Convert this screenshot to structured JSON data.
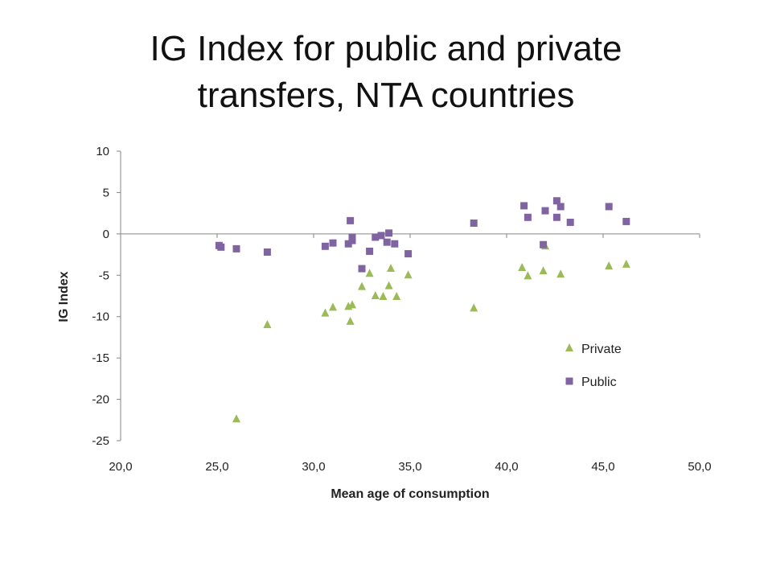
{
  "chart_data": {
    "type": "scatter",
    "title_lines": [
      "IG Index for public and private",
      "transfers, NTA countries"
    ],
    "xlabel": "Mean age of consumption",
    "ylabel": "IG Index",
    "xlim": [
      20,
      50
    ],
    "ylim": [
      -25,
      10
    ],
    "x_ticks": [
      20,
      25,
      30,
      35,
      40,
      45,
      50
    ],
    "x_tick_labels": [
      "20,0",
      "25,0",
      "30,0",
      "35,0",
      "40,0",
      "45,0",
      "50,0"
    ],
    "y_ticks": [
      10,
      5,
      0,
      -5,
      -10,
      -15,
      -20,
      -25
    ],
    "y_tick_labels": [
      "10",
      "5",
      "0",
      "-5",
      "-10",
      "-15",
      "-20",
      "-25"
    ],
    "grid": false,
    "legend_position": "bottom-right",
    "series": [
      {
        "name": "Private",
        "marker": "triangle",
        "color": "#9BBB59",
        "points": [
          [
            26.0,
            -22.4
          ],
          [
            27.6,
            -11.0
          ],
          [
            30.6,
            -9.6
          ],
          [
            31.0,
            -8.9
          ],
          [
            31.8,
            -8.8
          ],
          [
            32.0,
            -8.6
          ],
          [
            31.9,
            -10.6
          ],
          [
            32.5,
            -6.4
          ],
          [
            32.9,
            -4.8
          ],
          [
            33.2,
            -7.5
          ],
          [
            33.6,
            -7.6
          ],
          [
            33.9,
            -6.3
          ],
          [
            34.0,
            -4.2
          ],
          [
            34.3,
            -7.6
          ],
          [
            34.9,
            -5.0
          ],
          [
            38.3,
            -9.0
          ],
          [
            40.8,
            -4.1
          ],
          [
            41.1,
            -5.1
          ],
          [
            41.9,
            -4.5
          ],
          [
            42.0,
            -1.5
          ],
          [
            42.8,
            -4.9
          ],
          [
            45.3,
            -3.9
          ],
          [
            46.2,
            -3.7
          ]
        ]
      },
      {
        "name": "Public",
        "marker": "square",
        "color": "#8064A2",
        "points": [
          [
            25.1,
            -1.4
          ],
          [
            25.2,
            -1.6
          ],
          [
            26.0,
            -1.8
          ],
          [
            27.6,
            -2.2
          ],
          [
            30.6,
            -1.5
          ],
          [
            31.0,
            -1.1
          ],
          [
            31.8,
            -1.2
          ],
          [
            31.9,
            1.6
          ],
          [
            32.0,
            -0.4
          ],
          [
            32.0,
            -0.8
          ],
          [
            32.5,
            -4.2
          ],
          [
            32.9,
            -2.1
          ],
          [
            33.2,
            -0.4
          ],
          [
            33.5,
            -0.2
          ],
          [
            33.8,
            -1.0
          ],
          [
            33.9,
            0.1
          ],
          [
            34.2,
            -1.2
          ],
          [
            34.9,
            -2.4
          ],
          [
            38.3,
            1.3
          ],
          [
            40.9,
            3.4
          ],
          [
            41.1,
            2.0
          ],
          [
            41.9,
            -1.3
          ],
          [
            42.0,
            2.8
          ],
          [
            42.6,
            2.0
          ],
          [
            42.6,
            4.0
          ],
          [
            42.8,
            3.3
          ],
          [
            43.3,
            1.4
          ],
          [
            45.3,
            3.3
          ],
          [
            46.2,
            1.5
          ]
        ]
      }
    ]
  }
}
